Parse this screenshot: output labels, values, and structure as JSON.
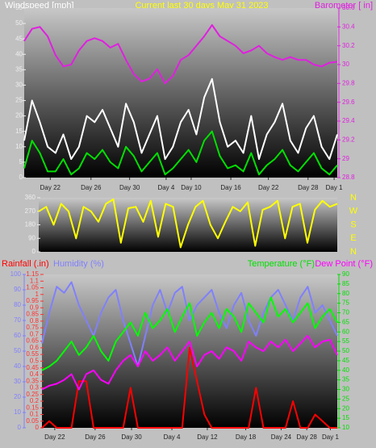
{
  "chart_data": [
    {
      "type": "line",
      "title": "Current last 30 days May 31 2023",
      "ylabel": "Windspeed [mph]",
      "y2label": "Barometer [ in]",
      "x": [
        0,
        0.75,
        1.5,
        2.25,
        3,
        3.75,
        4.5,
        5.25,
        6,
        6.75,
        7.5,
        8.25,
        9,
        9.75,
        10.5,
        11.25,
        12,
        12.75,
        13.5,
        14.25,
        15,
        15.75,
        16.5,
        17.25,
        18,
        18.75,
        19.5,
        20.25,
        21,
        21.75,
        22.5,
        23.25,
        24,
        24.75,
        25.5,
        26.25,
        27,
        27.75,
        28.5,
        29.25,
        30
      ],
      "xlim": [
        0,
        30
      ],
      "xticks": [
        {
          "value": 2.5,
          "label": "Day 22"
        },
        {
          "value": 6.4,
          "label": "Day 26"
        },
        {
          "value": 10.1,
          "label": "Day 30"
        },
        {
          "value": 13.6,
          "label": "Day 4"
        },
        {
          "value": 16,
          "label": "Day 10"
        },
        {
          "value": 19.8,
          "label": "Day 16"
        },
        {
          "value": 23.4,
          "label": "Day 22"
        },
        {
          "value": 27.2,
          "label": "Day 28"
        },
        {
          "value": 29.7,
          "label": "Day 1"
        }
      ],
      "ylim": [
        0,
        55
      ],
      "yticks": [
        0,
        5,
        10,
        15,
        20,
        25,
        30,
        35,
        40,
        45,
        50,
        55
      ],
      "y2lim": [
        28.8,
        30.6
      ],
      "y2ticks": [
        28.8,
        29,
        29.2,
        29.4,
        29.6,
        29.8,
        30,
        30.2,
        30.4,
        30.6
      ],
      "axis_colors": {
        "y": "#eeeeee",
        "y2": "#e020e0"
      },
      "series": [
        {
          "color": "#ffffff",
          "values": [
            12,
            25,
            18,
            10,
            8,
            14,
            6,
            10,
            20,
            18,
            22,
            16,
            10,
            24,
            18,
            8,
            14,
            20,
            6,
            10,
            18,
            22,
            14,
            26,
            32,
            18,
            10,
            12,
            8,
            20,
            6,
            14,
            18,
            24,
            12,
            8,
            16,
            20,
            10,
            6,
            14
          ]
        },
        {
          "color": "#00e000",
          "values": [
            3,
            12,
            8,
            2,
            2,
            6,
            1,
            3,
            8,
            6,
            9,
            5,
            3,
            10,
            7,
            2,
            5,
            8,
            1,
            3,
            6,
            9,
            5,
            12,
            15,
            7,
            3,
            4,
            2,
            8,
            1,
            4,
            6,
            9,
            4,
            2,
            5,
            8,
            3,
            1,
            4
          ]
        },
        {
          "color": "#e020e0",
          "axis": "y2",
          "values": [
            30.25,
            30.38,
            30.4,
            30.3,
            30.1,
            29.98,
            30.0,
            30.15,
            30.25,
            30.28,
            30.25,
            30.18,
            30.22,
            30.05,
            29.9,
            29.82,
            29.85,
            29.95,
            29.8,
            29.88,
            30.05,
            30.1,
            30.2,
            30.3,
            30.42,
            30.3,
            30.25,
            30.2,
            30.12,
            30.15,
            30.2,
            30.12,
            30.08,
            30.05,
            30.08,
            30.05,
            30.05,
            30.0,
            29.98,
            30.02,
            30.03
          ]
        }
      ]
    },
    {
      "type": "line",
      "annotations": [
        "N",
        "W",
        "S",
        "E",
        "N"
      ],
      "x": [
        0,
        0.75,
        1.5,
        2.25,
        3,
        3.75,
        4.5,
        5.25,
        6,
        6.75,
        7.5,
        8.25,
        9,
        9.75,
        10.5,
        11.25,
        12,
        12.75,
        13.5,
        14.25,
        15,
        15.75,
        16.5,
        17.25,
        18,
        18.75,
        19.5,
        20.25,
        21,
        21.75,
        22.5,
        23.25,
        24,
        24.75,
        25.5,
        26.25,
        27,
        27.75,
        28.5,
        29.25,
        30
      ],
      "xlim": [
        0,
        30
      ],
      "ylim": [
        0,
        360
      ],
      "yticks": [
        0,
        90,
        180,
        270,
        360
      ],
      "axis_colors": {
        "y": "#eeeeee"
      },
      "series": [
        {
          "color": "#ffff00",
          "values": [
            270,
            300,
            180,
            320,
            270,
            90,
            300,
            270,
            200,
            320,
            350,
            60,
            290,
            300,
            200,
            340,
            100,
            320,
            300,
            30,
            180,
            300,
            340,
            180,
            90,
            200,
            300,
            270,
            330,
            40,
            280,
            300,
            340,
            90,
            300,
            320,
            60,
            280,
            340,
            300,
            320
          ]
        }
      ]
    },
    {
      "type": "line",
      "x": [
        0,
        0.75,
        1.5,
        2.25,
        3,
        3.75,
        4.5,
        5.25,
        6,
        6.75,
        7.5,
        8.25,
        9,
        9.75,
        10.5,
        11.25,
        12,
        12.75,
        13.5,
        14.25,
        15,
        15.75,
        16.5,
        17.25,
        18,
        18.75,
        19.5,
        20.25,
        21,
        21.75,
        22.5,
        23.25,
        24,
        24.75,
        25.5,
        26.25,
        27,
        27.75,
        28.5,
        29.25,
        30
      ],
      "xlim": [
        0,
        30
      ],
      "xticks": [
        {
          "value": 1.3,
          "label": "Day 22"
        },
        {
          "value": 5.4,
          "label": "Day 26"
        },
        {
          "value": 9.1,
          "label": "Day 30"
        },
        {
          "value": 13.2,
          "label": "Day 4"
        },
        {
          "value": 16.8,
          "label": "Day 12"
        },
        {
          "value": 20.7,
          "label": "Day 18"
        },
        {
          "value": 24.3,
          "label": "Day 24"
        },
        {
          "value": 26.9,
          "label": "Day 28"
        },
        {
          "value": 29.3,
          "label": "Day 1"
        }
      ],
      "ylim": [
        0,
        1.15
      ],
      "yticks": [
        0,
        0.05,
        0.1,
        0.15,
        0.2,
        0.25,
        0.3,
        0.35,
        0.4,
        0.45,
        0.5,
        0.55,
        0.6,
        0.65,
        0.7,
        0.75,
        0.8,
        0.85,
        0.9,
        0.95,
        1,
        1.05,
        1.1,
        1.15
      ],
      "y3lim": [
        0,
        100
      ],
      "y3ticks": [
        0,
        10,
        20,
        30,
        40,
        50,
        60,
        70,
        80,
        90,
        100
      ],
      "y2lim": [
        10,
        90
      ],
      "y2ticks": [
        10,
        15,
        20,
        25,
        30,
        35,
        40,
        45,
        50,
        55,
        60,
        65,
        70,
        75,
        80,
        85,
        90
      ],
      "axis_colors": {
        "y": "#ff3030",
        "y3": "#8080ff",
        "y2": "#00e000"
      },
      "series": [
        {
          "name": "Rainfall (.in)",
          "color": "#ff0000",
          "values": [
            0,
            0.05,
            0,
            0,
            0,
            0.35,
            0.35,
            0,
            0,
            0,
            0,
            0,
            0.3,
            0,
            0,
            0,
            0,
            0,
            0,
            0,
            0.6,
            0.35,
            0.1,
            0,
            0,
            0,
            0,
            0,
            0,
            0.3,
            0,
            0,
            0,
            0,
            0.2,
            0,
            0,
            0.1,
            0.05,
            0,
            0
          ]
        },
        {
          "name": "Humidity (%)",
          "color": "#8080ff",
          "axis": "y3",
          "values": [
            55,
            75,
            92,
            88,
            95,
            80,
            70,
            60,
            75,
            85,
            90,
            70,
            55,
            40,
            60,
            80,
            90,
            75,
            88,
            92,
            70,
            80,
            85,
            90,
            75,
            65,
            80,
            88,
            70,
            60,
            75,
            85,
            90,
            80,
            70,
            85,
            92,
            75,
            80,
            70,
            60
          ]
        },
        {
          "name": "Temperature (°F)",
          "color": "#00ff00",
          "axis": "y2",
          "values": [
            40,
            42,
            45,
            50,
            55,
            48,
            52,
            58,
            50,
            45,
            55,
            60,
            65,
            58,
            70,
            62,
            66,
            72,
            60,
            68,
            75,
            58,
            65,
            70,
            62,
            72,
            68,
            60,
            75,
            70,
            65,
            78,
            68,
            72,
            65,
            70,
            75,
            62,
            68,
            72,
            65
          ]
        },
        {
          "name": "Dew Point (°F)",
          "color": "#ff00ff",
          "axis": "y2",
          "values": [
            30,
            32,
            33,
            35,
            38,
            30,
            38,
            40,
            35,
            33,
            40,
            45,
            48,
            42,
            50,
            45,
            48,
            52,
            45,
            50,
            55,
            42,
            48,
            50,
            46,
            52,
            50,
            45,
            55,
            52,
            50,
            55,
            52,
            56,
            50,
            54,
            58,
            52,
            55,
            56,
            48
          ]
        }
      ]
    }
  ]
}
